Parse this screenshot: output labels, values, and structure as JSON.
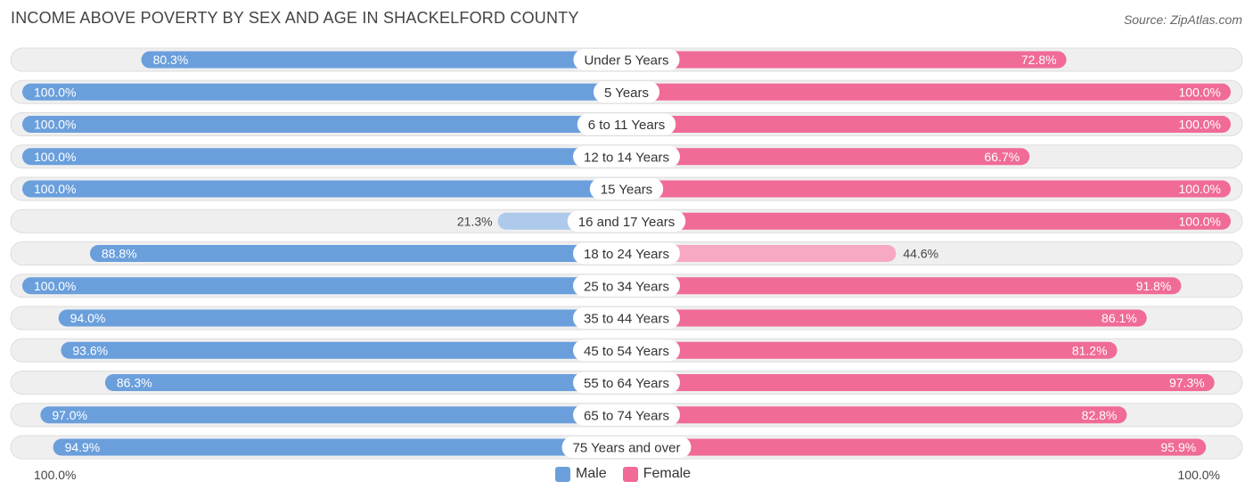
{
  "title": "INCOME ABOVE POVERTY BY SEX AND AGE IN SHACKELFORD COUNTY",
  "source": "Source: ZipAtlas.com",
  "axis": {
    "left_label": "100.0%",
    "right_label": "100.0%"
  },
  "legend": {
    "male": "Male",
    "female": "Female"
  },
  "colors": {
    "male_strong": "#6a9fdc",
    "male_light": "#adc9ec",
    "female_strong": "#f06b96",
    "female_light": "#f7a8c3",
    "row_bg": "#efefef",
    "row_border": "#dddddd"
  },
  "chart_data": {
    "type": "bar",
    "orientation": "horizontal-diverging",
    "title": "INCOME ABOVE POVERTY BY SEX AND AGE IN SHACKELFORD COUNTY",
    "xlim": [
      0,
      100
    ],
    "categories": [
      "Under 5 Years",
      "5 Years",
      "6 to 11 Years",
      "12 to 14 Years",
      "15 Years",
      "16 and 17 Years",
      "18 to 24 Years",
      "25 to 34 Years",
      "35 to 44 Years",
      "45 to 54 Years",
      "55 to 64 Years",
      "65 to 74 Years",
      "75 Years and over"
    ],
    "series": [
      {
        "name": "Male",
        "values": [
          80.3,
          100.0,
          100.0,
          100.0,
          100.0,
          21.3,
          88.8,
          100.0,
          94.0,
          93.6,
          86.3,
          97.0,
          94.9
        ],
        "labels": [
          "80.3%",
          "100.0%",
          "100.0%",
          "100.0%",
          "100.0%",
          "21.3%",
          "88.8%",
          "100.0%",
          "94.0%",
          "93.6%",
          "86.3%",
          "97.0%",
          "94.9%"
        ]
      },
      {
        "name": "Female",
        "values": [
          72.8,
          100.0,
          100.0,
          66.7,
          100.0,
          100.0,
          44.6,
          91.8,
          86.1,
          81.2,
          97.3,
          82.8,
          95.9
        ],
        "labels": [
          "72.8%",
          "100.0%",
          "100.0%",
          "66.7%",
          "100.0%",
          "100.0%",
          "44.6%",
          "91.8%",
          "86.1%",
          "81.2%",
          "97.3%",
          "82.8%",
          "95.9%"
        ]
      }
    ]
  }
}
